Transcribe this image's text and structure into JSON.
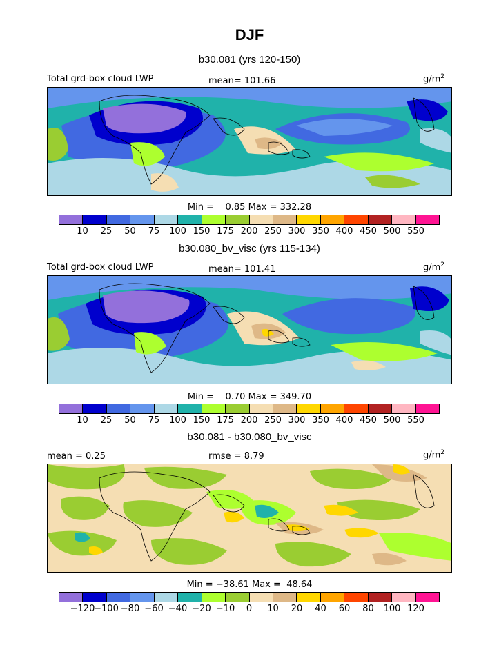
{
  "figure": {
    "title": "DJF"
  },
  "panels": [
    {
      "subtitle": "b30.081 (yrs 120-150)",
      "left_label": "Total grd-box cloud LWP",
      "center_label": "mean= 101.66",
      "right_label": "g/m",
      "right_label_sup": "2",
      "minmax": "Min =    0.85 Max = 332.28",
      "colorbar": {
        "colors": [
          "#9370db",
          "#0000cd",
          "#4169e1",
          "#6495ed",
          "#add8e6",
          "#20b2aa",
          "#adff2f",
          "#9acd32",
          "#f5deb3",
          "#deb887",
          "#ffd700",
          "#ffa500",
          "#ff4500",
          "#b22222",
          "#ffb6c1",
          "#ff1493"
        ],
        "tick_labels": [
          "10",
          "25",
          "50",
          "75",
          "100",
          "150",
          "175",
          "200",
          "250",
          "300",
          "350",
          "400",
          "450",
          "500",
          "550"
        ]
      }
    },
    {
      "subtitle": "b30.080_bv_visc (yrs 115-134)",
      "left_label": "Total grd-box cloud LWP",
      "center_label": "mean= 101.41",
      "right_label": "g/m",
      "right_label_sup": "2",
      "minmax": "Min =    0.70 Max = 349.70",
      "colorbar": {
        "colors": [
          "#9370db",
          "#0000cd",
          "#4169e1",
          "#6495ed",
          "#add8e6",
          "#20b2aa",
          "#adff2f",
          "#9acd32",
          "#f5deb3",
          "#deb887",
          "#ffd700",
          "#ffa500",
          "#ff4500",
          "#b22222",
          "#ffb6c1",
          "#ff1493"
        ],
        "tick_labels": [
          "10",
          "25",
          "50",
          "75",
          "100",
          "150",
          "175",
          "200",
          "250",
          "300",
          "350",
          "400",
          "450",
          "500",
          "550"
        ]
      }
    },
    {
      "subtitle": "b30.081 - b30.080_bv_visc",
      "left_label": "mean =    0.25",
      "center_label": "rmse =    8.79",
      "right_label": "g/m",
      "right_label_sup": "2",
      "minmax": "Min = −38.61 Max =  48.64",
      "colorbar": {
        "colors": [
          "#9370db",
          "#0000cd",
          "#4169e1",
          "#6495ed",
          "#add8e6",
          "#20b2aa",
          "#adff2f",
          "#9acd32",
          "#f5deb3",
          "#deb887",
          "#ffd700",
          "#ffa500",
          "#ff4500",
          "#b22222",
          "#ffb6c1",
          "#ff1493"
        ],
        "tick_labels": [
          "−120",
          "−100",
          "−80",
          "−60",
          "−40",
          "−20",
          "−10",
          "0",
          "10",
          "20",
          "40",
          "60",
          "80",
          "100",
          "120"
        ]
      }
    }
  ]
}
